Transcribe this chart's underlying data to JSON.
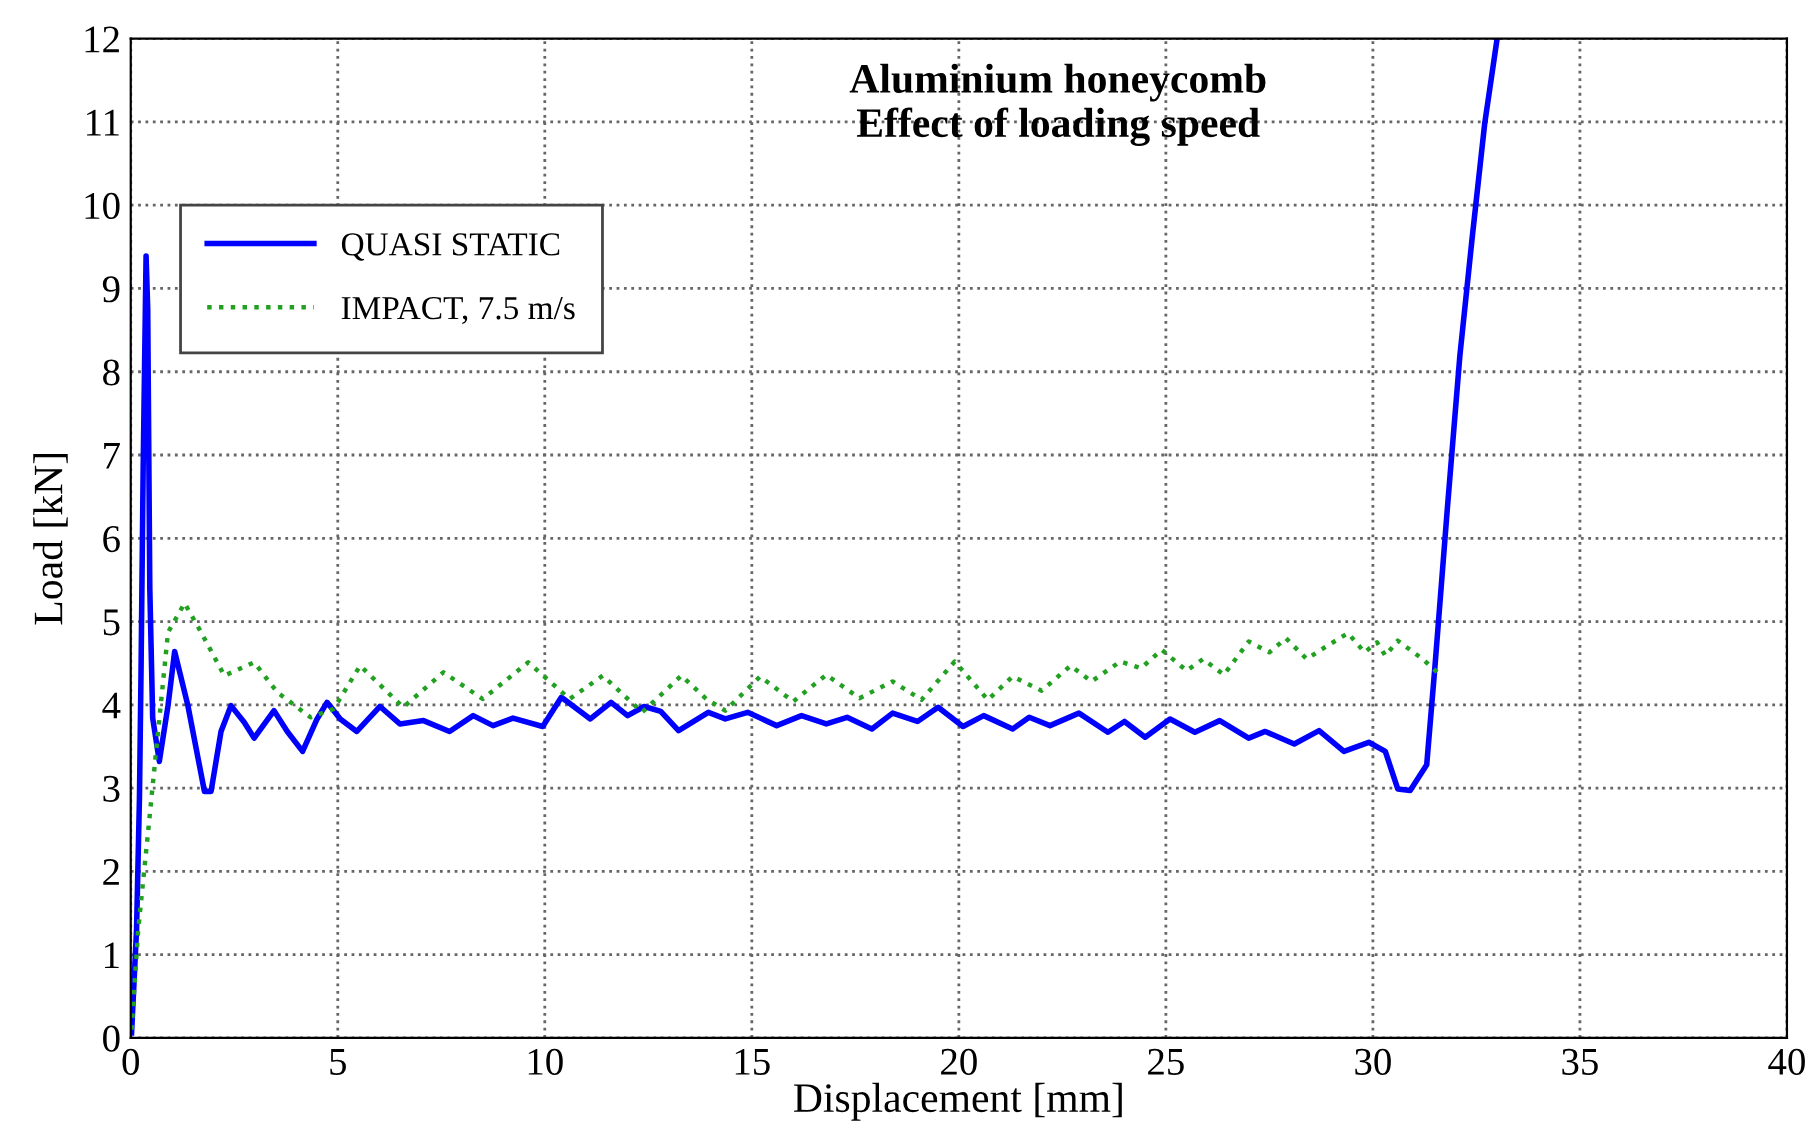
{
  "chart_data": {
    "type": "line",
    "title": "Aluminium honeycomb\nEffect of loading speed",
    "xlabel": "Displacement [mm]",
    "ylabel": "Load [kN]",
    "xlim": [
      0,
      40
    ],
    "ylim": [
      0,
      12
    ],
    "xticks": [
      0,
      5,
      10,
      15,
      20,
      25,
      30,
      35,
      40
    ],
    "yticks": [
      0,
      1,
      2,
      3,
      4,
      5,
      6,
      7,
      8,
      9,
      10,
      11,
      12
    ],
    "grid": true,
    "legend": "top left",
    "series": [
      {
        "name": "QUASI STATIC",
        "color": "#0000ff",
        "line_style": "solid",
        "x": [
          0.02,
          0.14,
          0.21,
          0.25,
          0.3,
          0.37,
          0.41,
          0.46,
          0.53,
          0.69,
          0.9,
          1.06,
          1.38,
          1.78,
          1.94,
          2.18,
          2.42,
          2.74,
          2.98,
          3.46,
          3.78,
          4.15,
          4.5,
          4.74,
          5.06,
          5.46,
          6.02,
          6.5,
          7.07,
          7.7,
          8.27,
          8.75,
          9.23,
          9.95,
          10.4,
          11.1,
          11.6,
          12.0,
          12.4,
          12.8,
          13.23,
          13.95,
          14.36,
          14.9,
          15.6,
          16.2,
          16.8,
          17.3,
          17.9,
          18.4,
          19.0,
          19.5,
          20.1,
          20.6,
          21.3,
          21.7,
          22.2,
          22.9,
          23.6,
          24.0,
          24.5,
          25.1,
          25.7,
          26.3,
          27.0,
          27.4,
          28.1,
          28.7,
          29.3,
          29.9,
          30.3,
          30.6,
          30.9,
          31.3,
          31.5,
          31.8,
          32.1,
          32.4,
          32.7,
          33.0
        ],
        "values": [
          0.06,
          1.3,
          2.88,
          4.47,
          6.85,
          9.39,
          8.75,
          5.4,
          3.84,
          3.32,
          3.99,
          4.64,
          3.99,
          2.96,
          2.96,
          3.68,
          3.99,
          3.79,
          3.6,
          3.93,
          3.68,
          3.44,
          3.83,
          4.03,
          3.83,
          3.68,
          3.98,
          3.77,
          3.81,
          3.68,
          3.87,
          3.75,
          3.84,
          3.74,
          4.09,
          3.83,
          4.03,
          3.87,
          3.98,
          3.92,
          3.69,
          3.91,
          3.83,
          3.91,
          3.75,
          3.87,
          3.77,
          3.85,
          3.71,
          3.9,
          3.8,
          3.97,
          3.74,
          3.87,
          3.71,
          3.85,
          3.75,
          3.9,
          3.67,
          3.8,
          3.61,
          3.83,
          3.67,
          3.81,
          3.6,
          3.68,
          3.53,
          3.69,
          3.44,
          3.55,
          3.44,
          2.99,
          2.97,
          3.28,
          4.47,
          6.37,
          8.19,
          9.62,
          10.98,
          12.0
        ]
      },
      {
        "name": "IMPACT, 7.5 m/s",
        "color": "#22a022",
        "line_style": "dotted",
        "x": [
          0.02,
          0.18,
          0.42,
          0.66,
          0.9,
          1.3,
          1.7,
          2.26,
          2.98,
          3.54,
          4.34,
          4.9,
          5.54,
          6.58,
          7.55,
          8.5,
          9.6,
          10.6,
          11.4,
          12.35,
          13.3,
          13.9,
          14.36,
          15.2,
          16.0,
          16.8,
          17.6,
          18.4,
          19.1,
          19.9,
          20.7,
          21.3,
          22.0,
          22.7,
          23.2,
          23.9,
          24.4,
          24.9,
          25.5,
          25.9,
          26.4,
          27.0,
          27.5,
          27.9,
          28.4,
          28.9,
          29.4,
          29.8,
          30.1,
          30.3,
          30.6,
          31.2,
          31.6
        ],
        "values": [
          0.1,
          1.3,
          2.48,
          3.68,
          4.87,
          5.22,
          4.87,
          4.35,
          4.51,
          4.15,
          3.85,
          3.95,
          4.47,
          3.97,
          4.39,
          4.07,
          4.51,
          4.07,
          4.35,
          3.91,
          4.35,
          4.07,
          3.93,
          4.34,
          4.04,
          4.36,
          4.08,
          4.28,
          4.06,
          4.52,
          4.06,
          4.34,
          4.17,
          4.47,
          4.28,
          4.52,
          4.44,
          4.66,
          4.41,
          4.55,
          4.36,
          4.76,
          4.63,
          4.8,
          4.55,
          4.71,
          4.86,
          4.63,
          4.75,
          4.59,
          4.77,
          4.55,
          4.37
        ]
      }
    ]
  }
}
